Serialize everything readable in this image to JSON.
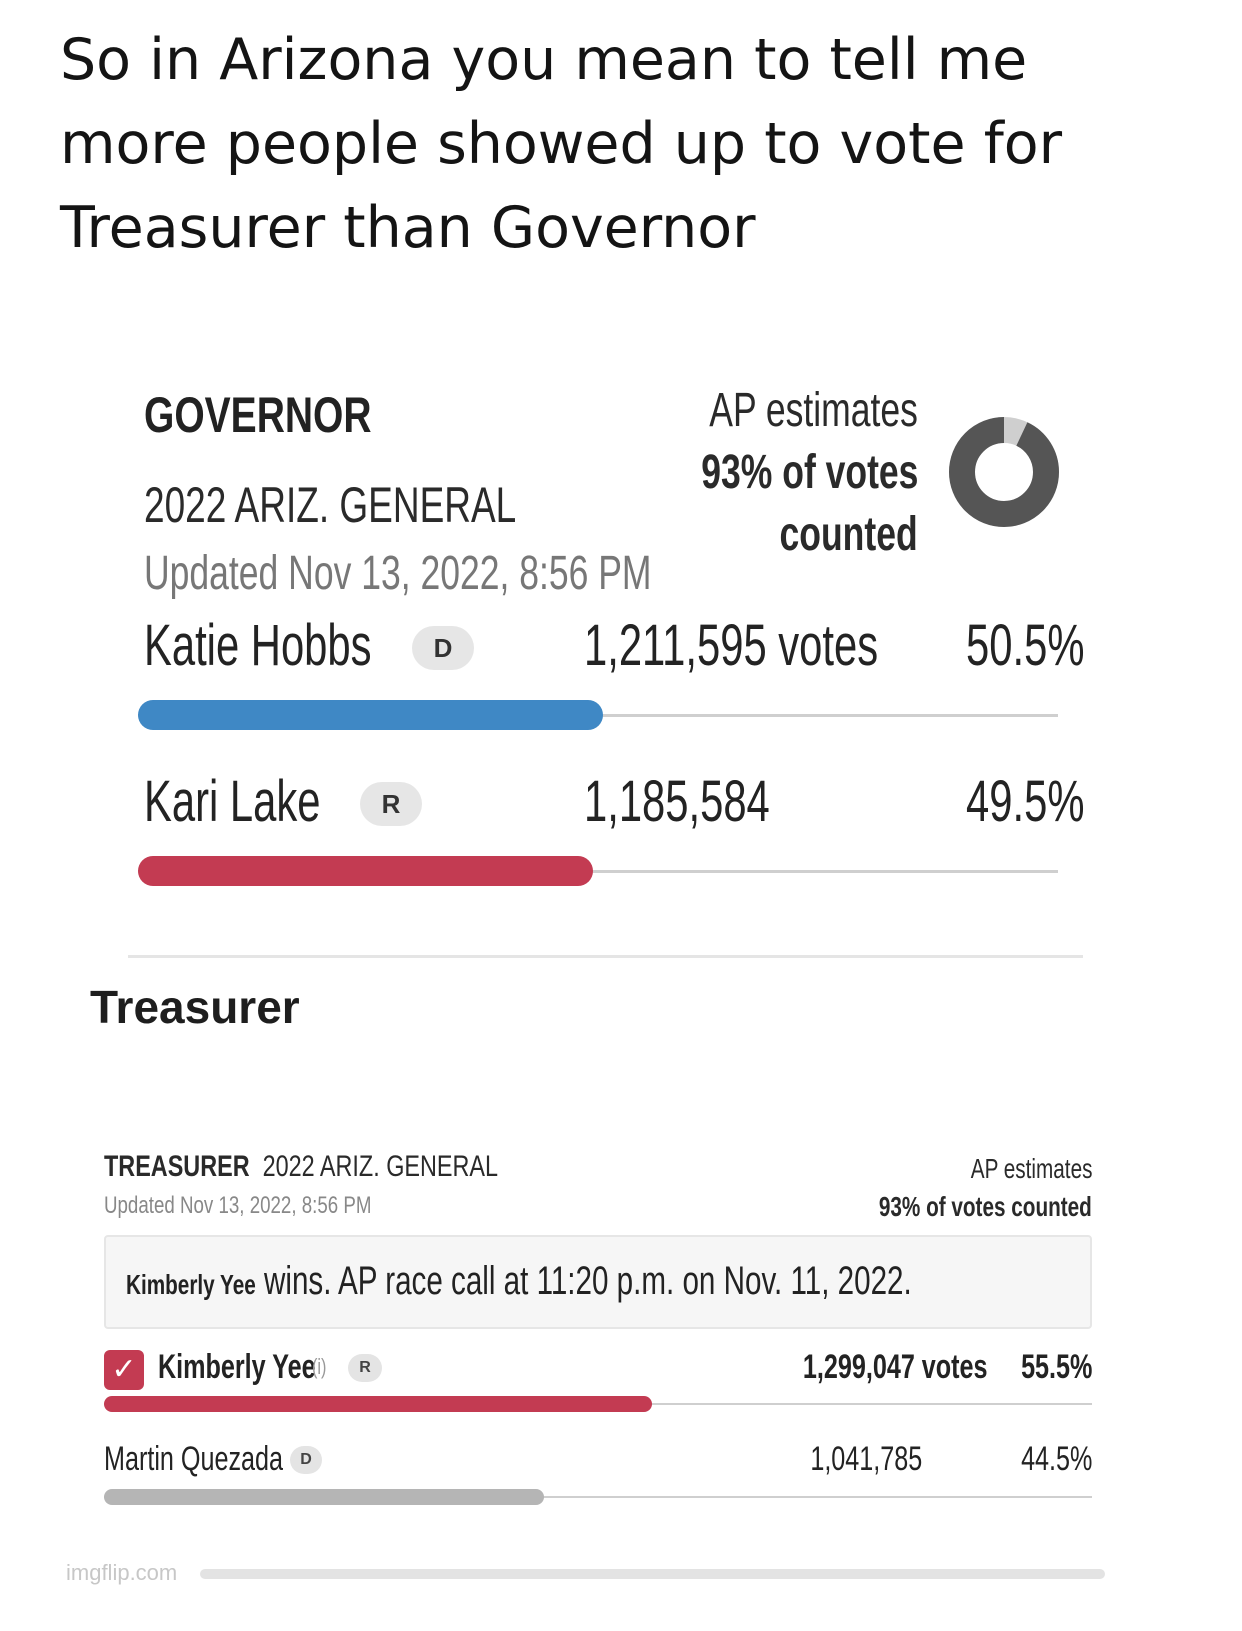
{
  "caption": "So in Arizona you mean to tell me more people showed up to vote for Treasurer than Governor",
  "governor": {
    "title": "GOVERNOR",
    "race": "2022 ARIZ. GENERAL",
    "updated": "Updated Nov 13, 2022, 8:56 PM",
    "ap_estimates_label": "AP estimates",
    "ap_pct_line": "93% of votes",
    "ap_counted_line": "counted",
    "votes_counted_fraction": 0.93,
    "candidates": [
      {
        "name": "Katie Hobbs",
        "party": "D",
        "votes": "1,211,595 votes",
        "pct": "50.5%",
        "share": 0.505,
        "color": "#3f88c5"
      },
      {
        "name": "Kari Lake",
        "party": "R",
        "votes": "1,185,584",
        "pct": "49.5%",
        "share": 0.495,
        "color": "#c33b52"
      }
    ]
  },
  "section_title": "Treasurer",
  "treasurer": {
    "title": "TREASURER",
    "race": "2022 ARIZ. GENERAL",
    "updated": "Updated Nov 13, 2022, 8:56 PM",
    "ap_estimates_label": "AP estimates",
    "ap_pct_line": "93% of votes counted",
    "call_winner": "Kimberly Yee",
    "call_text": "wins. AP race call at 11:20 p.m. on Nov. 11, 2022.",
    "candidates": [
      {
        "name": "Kimberly Yee",
        "incumbent_mark": "(i)",
        "party": "R",
        "votes": "1,299,047 votes",
        "pct": "55.5%",
        "share": 0.555,
        "color": "#c33b52",
        "winner": true
      },
      {
        "name": "Martin Quezada",
        "party": "D",
        "votes": "1,041,785",
        "pct": "44.5%",
        "share": 0.445,
        "color": "#b5b5b5",
        "winner": false
      }
    ]
  },
  "watermark": "imgflip.com",
  "colors": {
    "dem_blue": "#3f88c5",
    "rep_red": "#c33b52",
    "loser_gray": "#b5b5b5",
    "donut_dark": "#555555",
    "donut_light": "#cfcfcf"
  }
}
